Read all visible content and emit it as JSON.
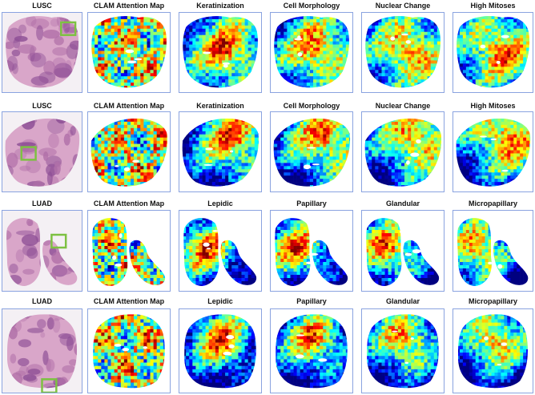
{
  "colors": {
    "panel_border": "#8aa3e0",
    "roi_box": "#7dc142",
    "he_stain_dark": "#8e4f96",
    "he_stain_light": "#d9a6c9"
  },
  "rows": [
    {
      "slide_label": "LUSC",
      "maps": [
        "CLAM Attention Map",
        "Keratinization",
        "Cell Morphology",
        "Nuclear Change",
        "High Mitoses"
      ]
    },
    {
      "slide_label": "LUSC",
      "maps": [
        "CLAM Attention Map",
        "Keratinization",
        "Cell Morphology",
        "Nuclear Change",
        "High Mitoses"
      ]
    },
    {
      "slide_label": "LUAD",
      "maps": [
        "CLAM Attention Map",
        "Lepidic",
        "Papillary",
        "Glandular",
        "Micropapillary"
      ]
    },
    {
      "slide_label": "LUAD",
      "maps": [
        "CLAM Attention Map",
        "Lepidic",
        "Papillary",
        "Glandular",
        "Micropapillary"
      ]
    }
  ]
}
